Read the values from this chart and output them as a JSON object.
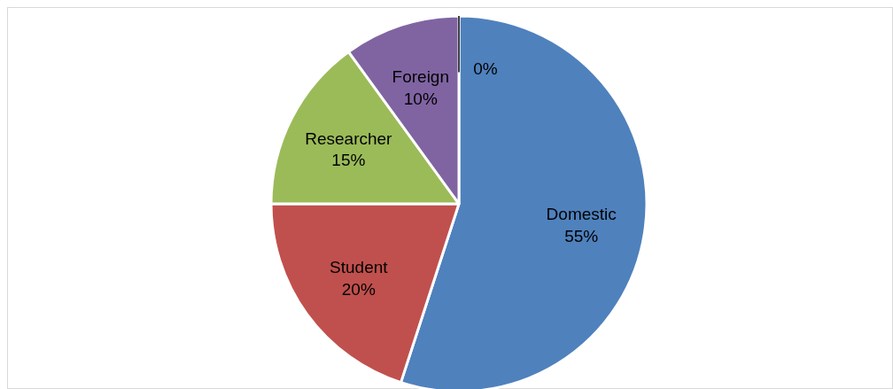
{
  "chart_data": {
    "type": "pie",
    "categories": [
      "Domestic",
      "Student",
      "Researcher",
      "Foreign",
      null
    ],
    "values": [
      55,
      20,
      15,
      10,
      0
    ],
    "value_labels": [
      "55%",
      "20%",
      "15%",
      "10%",
      "0%"
    ],
    "colors": [
      "#4f81bd",
      "#c0504d",
      "#9bbb59",
      "#8064a2",
      "#404040"
    ]
  }
}
